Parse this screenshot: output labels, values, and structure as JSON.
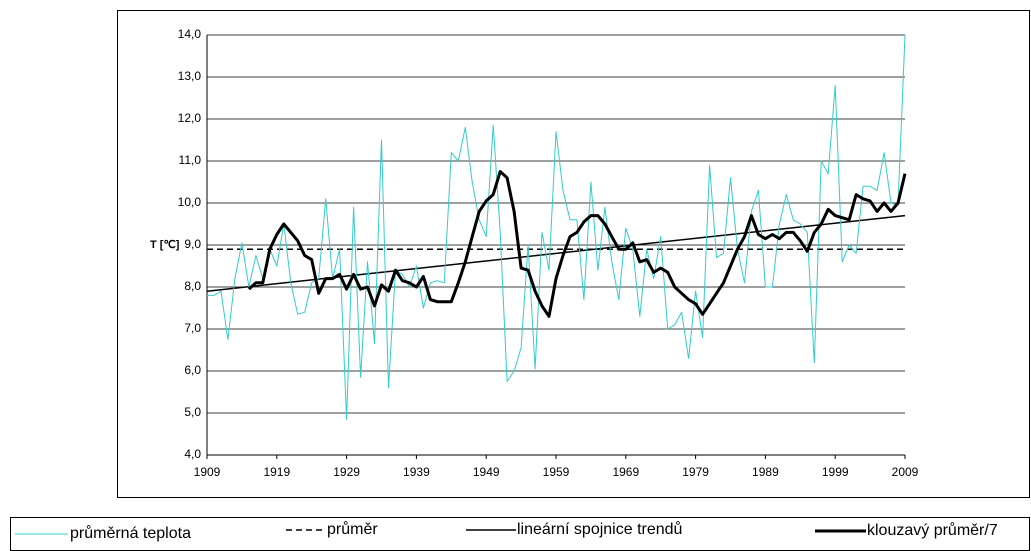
{
  "chart_data": {
    "type": "line",
    "y_label": "T [℃]",
    "x": [
      1909,
      1910,
      1911,
      1912,
      1913,
      1914,
      1915,
      1916,
      1917,
      1918,
      1919,
      1920,
      1921,
      1922,
      1923,
      1924,
      1925,
      1926,
      1927,
      1928,
      1929,
      1930,
      1931,
      1932,
      1933,
      1934,
      1935,
      1936,
      1937,
      1938,
      1939,
      1940,
      1941,
      1942,
      1943,
      1944,
      1945,
      1946,
      1947,
      1948,
      1949,
      1950,
      1951,
      1952,
      1953,
      1954,
      1955,
      1956,
      1957,
      1958,
      1959,
      1960,
      1961,
      1962,
      1963,
      1964,
      1965,
      1966,
      1967,
      1968,
      1969,
      1970,
      1971,
      1972,
      1973,
      1974,
      1975,
      1976,
      1977,
      1978,
      1979,
      1980,
      1981,
      1982,
      1983,
      1984,
      1985,
      1986,
      1987,
      1988,
      1989,
      1990,
      1991,
      1992,
      1993,
      1994,
      1995,
      1996,
      1997,
      1998,
      1999,
      2000,
      2001,
      2002,
      2003,
      2004,
      2005,
      2006,
      2007,
      2008,
      2009
    ],
    "series": [
      {
        "name": "průměrná teplota",
        "color": "#33cccc",
        "width": 1,
        "values": [
          7.8,
          7.8,
          7.9,
          6.75,
          8.2,
          9.05,
          8.0,
          8.75,
          8.2,
          8.9,
          8.5,
          9.5,
          8.1,
          7.35,
          7.4,
          8.1,
          8.2,
          10.1,
          8.2,
          8.9,
          4.85,
          9.9,
          5.85,
          8.6,
          6.65,
          11.5,
          5.6,
          8.4,
          8.3,
          8.0,
          8.5,
          7.5,
          8.1,
          8.15,
          8.1,
          11.2,
          11.0,
          11.8,
          10.5,
          9.6,
          9.2,
          11.85,
          9.3,
          5.75,
          6.0,
          6.55,
          9.0,
          6.05,
          9.3,
          8.4,
          11.7,
          10.3,
          9.6,
          9.6,
          7.7,
          10.5,
          8.4,
          9.9,
          8.6,
          7.7,
          9.4,
          8.9,
          7.3,
          8.9,
          8.2,
          9.2,
          7.0,
          7.1,
          7.4,
          6.3,
          7.9,
          6.8,
          10.9,
          8.7,
          8.8,
          10.6,
          8.9,
          8.1,
          9.8,
          10.3,
          8.0,
          8.0,
          9.5,
          10.2,
          9.6,
          9.5,
          9.3,
          6.2,
          11.0,
          10.7,
          12.8,
          8.6,
          9.0,
          8.8,
          10.4,
          10.4,
          10.3,
          11.2,
          10.0,
          9.95,
          14.0
        ]
      },
      {
        "name": "klouzavý průměr/7",
        "color": "#000000",
        "width": 3,
        "values": [
          null,
          null,
          null,
          null,
          null,
          null,
          7.95,
          8.1,
          8.1,
          8.9,
          9.25,
          9.5,
          9.3,
          9.1,
          8.75,
          8.65,
          7.85,
          8.2,
          8.2,
          8.3,
          7.95,
          8.3,
          7.95,
          8.0,
          7.55,
          8.05,
          7.9,
          8.4,
          8.15,
          8.1,
          8.0,
          8.25,
          7.7,
          7.65,
          7.65,
          7.65,
          8.1,
          8.6,
          9.2,
          9.8,
          10.05,
          10.2,
          10.75,
          10.6,
          9.8,
          8.45,
          8.4,
          7.9,
          7.55,
          7.3,
          8.2,
          8.75,
          9.2,
          9.3,
          9.55,
          9.7,
          9.7,
          9.5,
          9.2,
          8.9,
          8.9,
          9.05,
          8.6,
          8.65,
          8.35,
          8.45,
          8.35,
          8.0,
          7.85,
          7.7,
          7.6,
          7.35,
          7.6,
          7.85,
          8.1,
          8.5,
          8.9,
          9.2,
          9.7,
          9.25,
          9.15,
          9.25,
          9.15,
          9.3,
          9.3,
          9.1,
          8.85,
          9.3,
          9.5,
          9.85,
          9.7,
          9.65,
          9.6,
          10.2,
          10.1,
          10.05,
          9.8,
          10.0,
          9.8,
          10.0,
          10.7
        ]
      }
    ],
    "mean": {
      "name": "průměr",
      "value": 8.9
    },
    "trend": {
      "name": "lineární spojnice trendů",
      "values": [
        7.9,
        9.7
      ]
    },
    "xlim": [
      1909,
      2009
    ],
    "xticks": [
      1909,
      1919,
      1929,
      1939,
      1949,
      1959,
      1969,
      1979,
      1989,
      1999,
      2009
    ],
    "ylim": [
      4,
      14
    ],
    "yticks": [
      {
        "value": 4,
        "label": "4,0"
      },
      {
        "value": 5,
        "label": "5,0"
      },
      {
        "value": 6,
        "label": "6,0"
      },
      {
        "value": 7,
        "label": "7,0"
      },
      {
        "value": 8,
        "label": "8,0"
      },
      {
        "value": 9,
        "label": "9,0"
      },
      {
        "value": 10,
        "label": "10,0"
      },
      {
        "value": 11,
        "label": "11,0"
      },
      {
        "value": 12,
        "label": "12,0"
      },
      {
        "value": 13,
        "label": "13,0"
      },
      {
        "value": 14,
        "label": "14,0"
      }
    ],
    "grid": true
  }
}
